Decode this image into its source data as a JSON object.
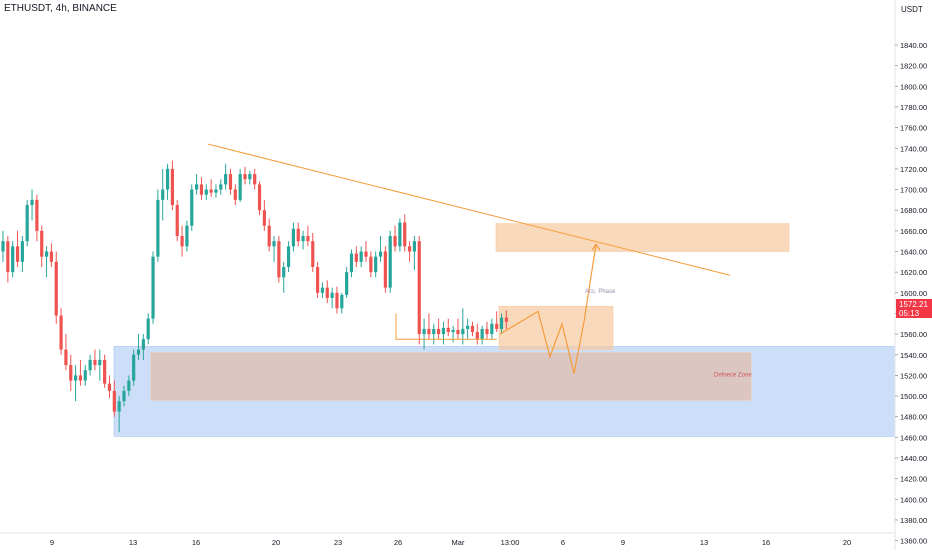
{
  "symbol": "ETHUSDT, 4h, BINANCE",
  "currency": "USDT",
  "last_price": "1572.21",
  "countdown": "05:13",
  "colors": {
    "up": "#26a69a",
    "down": "#ef5350",
    "trend_line": "#f59c3b",
    "orange_zone": "#f7c9a0",
    "blue_zone": "#bcd4f5",
    "price_badge": "#f23645"
  },
  "annotations": {
    "acc_phase": "Acc. Phase",
    "defense_zone": "Defnece Zone"
  },
  "chart_data": {
    "type": "candlestick",
    "interval": "4h",
    "ylim": [
      1350,
      1860
    ],
    "y_ticks": [
      "1840.00",
      "1820.00",
      "1800.00",
      "1780.00",
      "1760.00",
      "1740.00",
      "1720.00",
      "1700.00",
      "1680.00",
      "1660.00",
      "1640.00",
      "1620.00",
      "1600.00",
      "1580.00",
      "1560.00",
      "1540.00",
      "1520.00",
      "1500.00",
      "1480.00",
      "1460.00",
      "1440.00",
      "1420.00",
      "1400.00",
      "1380.00",
      "1360.00"
    ],
    "x_ticks": [
      "9",
      "13",
      "16",
      "20",
      "23",
      "26",
      "Mar",
      "13:00",
      "6",
      "9",
      "13",
      "16",
      "20"
    ],
    "candles": [
      {
        "o": 1640,
        "h": 1660,
        "l": 1630,
        "c": 1650
      },
      {
        "o": 1650,
        "h": 1655,
        "l": 1610,
        "c": 1620
      },
      {
        "o": 1620,
        "h": 1650,
        "l": 1615,
        "c": 1645
      },
      {
        "o": 1645,
        "h": 1660,
        "l": 1625,
        "c": 1630
      },
      {
        "o": 1630,
        "h": 1655,
        "l": 1620,
        "c": 1650
      },
      {
        "o": 1650,
        "h": 1690,
        "l": 1645,
        "c": 1685
      },
      {
        "o": 1685,
        "h": 1700,
        "l": 1670,
        "c": 1690
      },
      {
        "o": 1690,
        "h": 1695,
        "l": 1650,
        "c": 1660
      },
      {
        "o": 1660,
        "h": 1665,
        "l": 1625,
        "c": 1635
      },
      {
        "o": 1635,
        "h": 1645,
        "l": 1615,
        "c": 1640
      },
      {
        "o": 1640,
        "h": 1648,
        "l": 1625,
        "c": 1630
      },
      {
        "o": 1630,
        "h": 1640,
        "l": 1570,
        "c": 1578
      },
      {
        "o": 1578,
        "h": 1585,
        "l": 1540,
        "c": 1545
      },
      {
        "o": 1545,
        "h": 1560,
        "l": 1525,
        "c": 1530
      },
      {
        "o": 1530,
        "h": 1540,
        "l": 1505,
        "c": 1515
      },
      {
        "o": 1515,
        "h": 1530,
        "l": 1495,
        "c": 1520
      },
      {
        "o": 1520,
        "h": 1535,
        "l": 1510,
        "c": 1515
      },
      {
        "o": 1515,
        "h": 1530,
        "l": 1510,
        "c": 1525
      },
      {
        "o": 1525,
        "h": 1540,
        "l": 1520,
        "c": 1535
      },
      {
        "o": 1535,
        "h": 1545,
        "l": 1525,
        "c": 1530
      },
      {
        "o": 1530,
        "h": 1545,
        "l": 1515,
        "c": 1535
      },
      {
        "o": 1535,
        "h": 1540,
        "l": 1508,
        "c": 1512
      },
      {
        "o": 1512,
        "h": 1520,
        "l": 1498,
        "c": 1505
      },
      {
        "o": 1505,
        "h": 1515,
        "l": 1480,
        "c": 1485
      },
      {
        "o": 1485,
        "h": 1500,
        "l": 1465,
        "c": 1495
      },
      {
        "o": 1495,
        "h": 1510,
        "l": 1490,
        "c": 1505
      },
      {
        "o": 1505,
        "h": 1520,
        "l": 1500,
        "c": 1515
      },
      {
        "o": 1515,
        "h": 1545,
        "l": 1510,
        "c": 1540
      },
      {
        "o": 1540,
        "h": 1560,
        "l": 1535,
        "c": 1545
      },
      {
        "o": 1545,
        "h": 1560,
        "l": 1535,
        "c": 1555
      },
      {
        "o": 1555,
        "h": 1580,
        "l": 1550,
        "c": 1575
      },
      {
        "o": 1575,
        "h": 1640,
        "l": 1570,
        "c": 1635
      },
      {
        "o": 1635,
        "h": 1700,
        "l": 1630,
        "c": 1690
      },
      {
        "o": 1690,
        "h": 1720,
        "l": 1670,
        "c": 1700
      },
      {
        "o": 1700,
        "h": 1725,
        "l": 1690,
        "c": 1720
      },
      {
        "o": 1720,
        "h": 1728,
        "l": 1680,
        "c": 1685
      },
      {
        "o": 1685,
        "h": 1690,
        "l": 1650,
        "c": 1655
      },
      {
        "o": 1655,
        "h": 1665,
        "l": 1635,
        "c": 1645
      },
      {
        "o": 1645,
        "h": 1670,
        "l": 1640,
        "c": 1665
      },
      {
        "o": 1665,
        "h": 1705,
        "l": 1660,
        "c": 1700
      },
      {
        "o": 1700,
        "h": 1715,
        "l": 1695,
        "c": 1705
      },
      {
        "o": 1705,
        "h": 1712,
        "l": 1690,
        "c": 1695
      },
      {
        "o": 1695,
        "h": 1705,
        "l": 1690,
        "c": 1700
      },
      {
        "o": 1700,
        "h": 1710,
        "l": 1693,
        "c": 1697
      },
      {
        "o": 1697,
        "h": 1705,
        "l": 1692,
        "c": 1700
      },
      {
        "o": 1700,
        "h": 1710,
        "l": 1695,
        "c": 1705
      },
      {
        "o": 1705,
        "h": 1725,
        "l": 1700,
        "c": 1715
      },
      {
        "o": 1715,
        "h": 1720,
        "l": 1695,
        "c": 1700
      },
      {
        "o": 1700,
        "h": 1705,
        "l": 1685,
        "c": 1690
      },
      {
        "o": 1690,
        "h": 1720,
        "l": 1688,
        "c": 1715
      },
      {
        "o": 1715,
        "h": 1722,
        "l": 1705,
        "c": 1710
      },
      {
        "o": 1710,
        "h": 1718,
        "l": 1705,
        "c": 1715
      },
      {
        "o": 1715,
        "h": 1720,
        "l": 1700,
        "c": 1705
      },
      {
        "o": 1705,
        "h": 1708,
        "l": 1675,
        "c": 1680
      },
      {
        "o": 1680,
        "h": 1690,
        "l": 1660,
        "c": 1665
      },
      {
        "o": 1665,
        "h": 1672,
        "l": 1640,
        "c": 1645
      },
      {
        "o": 1645,
        "h": 1655,
        "l": 1630,
        "c": 1650
      },
      {
        "o": 1650,
        "h": 1655,
        "l": 1610,
        "c": 1615
      },
      {
        "o": 1615,
        "h": 1630,
        "l": 1600,
        "c": 1625
      },
      {
        "o": 1625,
        "h": 1650,
        "l": 1620,
        "c": 1645
      },
      {
        "o": 1645,
        "h": 1668,
        "l": 1640,
        "c": 1662
      },
      {
        "o": 1662,
        "h": 1668,
        "l": 1645,
        "c": 1650
      },
      {
        "o": 1650,
        "h": 1660,
        "l": 1642,
        "c": 1655
      },
      {
        "o": 1655,
        "h": 1665,
        "l": 1645,
        "c": 1650
      },
      {
        "o": 1650,
        "h": 1658,
        "l": 1620,
        "c": 1625
      },
      {
        "o": 1625,
        "h": 1630,
        "l": 1595,
        "c": 1600
      },
      {
        "o": 1600,
        "h": 1610,
        "l": 1595,
        "c": 1605
      },
      {
        "o": 1605,
        "h": 1612,
        "l": 1590,
        "c": 1595
      },
      {
        "o": 1595,
        "h": 1605,
        "l": 1585,
        "c": 1600
      },
      {
        "o": 1600,
        "h": 1606,
        "l": 1580,
        "c": 1585
      },
      {
        "o": 1585,
        "h": 1600,
        "l": 1580,
        "c": 1598
      },
      {
        "o": 1598,
        "h": 1625,
        "l": 1595,
        "c": 1620
      },
      {
        "o": 1620,
        "h": 1642,
        "l": 1615,
        "c": 1638
      },
      {
        "o": 1638,
        "h": 1645,
        "l": 1625,
        "c": 1630
      },
      {
        "o": 1630,
        "h": 1645,
        "l": 1625,
        "c": 1640
      },
      {
        "o": 1640,
        "h": 1650,
        "l": 1630,
        "c": 1635
      },
      {
        "o": 1635,
        "h": 1640,
        "l": 1615,
        "c": 1620
      },
      {
        "o": 1620,
        "h": 1640,
        "l": 1615,
        "c": 1635
      },
      {
        "o": 1635,
        "h": 1655,
        "l": 1630,
        "c": 1640
      },
      {
        "o": 1640,
        "h": 1645,
        "l": 1600,
        "c": 1605
      },
      {
        "o": 1605,
        "h": 1660,
        "l": 1600,
        "c": 1655
      },
      {
        "o": 1655,
        "h": 1665,
        "l": 1640,
        "c": 1645
      },
      {
        "o": 1645,
        "h": 1672,
        "l": 1640,
        "c": 1668
      },
      {
        "o": 1668,
        "h": 1676,
        "l": 1640,
        "c": 1645
      },
      {
        "o": 1645,
        "h": 1650,
        "l": 1630,
        "c": 1640
      },
      {
        "o": 1640,
        "h": 1655,
        "l": 1622,
        "c": 1650
      },
      {
        "o": 1650,
        "h": 1655,
        "l": 1550,
        "c": 1560
      },
      {
        "o": 1560,
        "h": 1575,
        "l": 1545,
        "c": 1565
      },
      {
        "o": 1565,
        "h": 1580,
        "l": 1555,
        "c": 1560
      },
      {
        "o": 1560,
        "h": 1570,
        "l": 1550,
        "c": 1565
      },
      {
        "o": 1565,
        "h": 1575,
        "l": 1555,
        "c": 1560
      },
      {
        "o": 1560,
        "h": 1572,
        "l": 1550,
        "c": 1566
      },
      {
        "o": 1566,
        "h": 1575,
        "l": 1558,
        "c": 1562
      },
      {
        "o": 1562,
        "h": 1568,
        "l": 1552,
        "c": 1564
      },
      {
        "o": 1564,
        "h": 1575,
        "l": 1555,
        "c": 1560
      },
      {
        "o": 1560,
        "h": 1585,
        "l": 1550,
        "c": 1565
      },
      {
        "o": 1565,
        "h": 1575,
        "l": 1555,
        "c": 1568
      },
      {
        "o": 1568,
        "h": 1572,
        "l": 1558,
        "c": 1562
      },
      {
        "o": 1562,
        "h": 1570,
        "l": 1550,
        "c": 1555
      },
      {
        "o": 1555,
        "h": 1568,
        "l": 1550,
        "c": 1565
      },
      {
        "o": 1565,
        "h": 1572,
        "l": 1555,
        "c": 1560
      },
      {
        "o": 1560,
        "h": 1575,
        "l": 1555,
        "c": 1570
      },
      {
        "o": 1570,
        "h": 1582,
        "l": 1562,
        "c": 1565
      },
      {
        "o": 1565,
        "h": 1580,
        "l": 1560,
        "c": 1576
      },
      {
        "o": 1576,
        "h": 1583,
        "l": 1565,
        "c": 1572
      }
    ],
    "zones": [
      {
        "name": "blue-support-zone",
        "y_low": 1461,
        "y_high": 1548
      },
      {
        "name": "defense-zone",
        "y_low": 1496,
        "y_high": 1542
      },
      {
        "name": "upper-target-zone",
        "y_low": 1640,
        "y_high": 1667
      },
      {
        "name": "acc-phase-zone",
        "y_low": 1545,
        "y_high": 1587
      }
    ],
    "trendline": {
      "from": 1744,
      "to": 1617
    },
    "range_line": 1555,
    "projection": [
      1560,
      1582,
      1538,
      1570,
      1522,
      1572,
      1647
    ]
  }
}
